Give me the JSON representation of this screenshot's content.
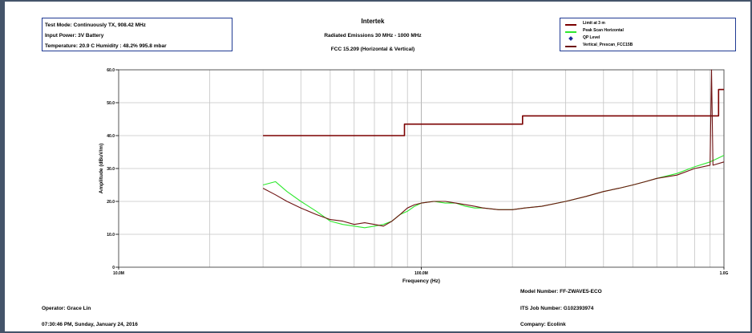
{
  "info": {
    "line1": "Test Mode: Continuously TX, 908.42 MHz",
    "line2": "Input Power: 3V Battery",
    "line3": "Temperature: 20.9 C Humidity : 48.2% 995.8 mbar"
  },
  "header": {
    "company": "Intertek",
    "subtitle": "Radiated Emissions 30 MHz - 1000 MHz",
    "standard": "FCC 15.209 (Horizontal & Vertical)"
  },
  "legend": [
    {
      "label": "Limit at 3 m",
      "color": "#7b0000",
      "kind": "line"
    },
    {
      "label": "Peak Scan Horizontal",
      "color": "#2ee82e",
      "kind": "line"
    },
    {
      "label": "QP Level",
      "color": "#1a2a9a",
      "kind": "dot"
    },
    {
      "label": "Vertical_Prescan_FCC15B",
      "color": "#6e1212",
      "kind": "line"
    }
  ],
  "footer": {
    "model": "Model Number: FF-ZWAVE5-ECO",
    "job": "ITS Job Number: G102393974",
    "company": "Company: Ecolink",
    "operator": "Operator: Grace Lin",
    "timestamp": "07:30:46 PM, Sunday, January 24, 2016"
  },
  "chart_data": {
    "type": "line",
    "xlabel": "Frequency (Hz)",
    "ylabel": "Amplitude (dBuV/m)",
    "xscale": "log",
    "xlim": [
      10000000,
      1000000000
    ],
    "ylim": [
      0,
      60
    ],
    "grid": true,
    "x_tick_labels": [
      {
        "value": 10000000,
        "label": "10.0M"
      },
      {
        "value": 100000000,
        "label": "100.0M"
      },
      {
        "value": 1000000000,
        "label": "1.0G"
      }
    ],
    "y_tick_labels": [
      {
        "value": 0,
        "label": "0"
      },
      {
        "value": 10,
        "label": "10.0"
      },
      {
        "value": 20,
        "label": "20.0"
      },
      {
        "value": 30,
        "label": "30.0"
      },
      {
        "value": 40,
        "label": "40.0"
      },
      {
        "value": 50,
        "label": "50.0"
      },
      {
        "value": 60,
        "label": "60.0"
      }
    ],
    "series": [
      {
        "name": "Limit at 3 m",
        "color": "#7b0000",
        "x": [
          30000000,
          88000000,
          88000000,
          216000000,
          216000000,
          960000000,
          960000000,
          1000000000
        ],
        "y": [
          40,
          40,
          43.5,
          43.5,
          46,
          46,
          54,
          54
        ]
      },
      {
        "name": "Peak Scan Horizontal",
        "color": "#2ee82e",
        "x": [
          30000000,
          33000000,
          36000000,
          40000000,
          45000000,
          50000000,
          55000000,
          60000000,
          65000000,
          70000000,
          75000000,
          80000000,
          85000000,
          90000000,
          95000000,
          100000000,
          110000000,
          120000000,
          130000000,
          140000000,
          150000000,
          160000000,
          180000000,
          200000000,
          220000000,
          250000000,
          300000000,
          350000000,
          400000000,
          450000000,
          500000000,
          550000000,
          600000000,
          700000000,
          800000000,
          900000000,
          1000000000
        ],
        "y": [
          25,
          26,
          23,
          20,
          17,
          14,
          13,
          12.5,
          12,
          12.5,
          13,
          14,
          16,
          17,
          18.5,
          19.5,
          20,
          19.5,
          19.5,
          18.5,
          18,
          18,
          17.5,
          17.5,
          18,
          18.5,
          20,
          21.5,
          23,
          24,
          25,
          26,
          27,
          28.5,
          30.5,
          32,
          34
        ]
      },
      {
        "name": "Vertical_Prescan_FCC15B",
        "color": "#6e1212",
        "x": [
          30000000,
          33000000,
          36000000,
          40000000,
          45000000,
          50000000,
          55000000,
          60000000,
          65000000,
          70000000,
          75000000,
          80000000,
          85000000,
          90000000,
          95000000,
          100000000,
          110000000,
          120000000,
          130000000,
          140000000,
          150000000,
          160000000,
          180000000,
          200000000,
          220000000,
          250000000,
          300000000,
          350000000,
          400000000,
          450000000,
          500000000,
          550000000,
          600000000,
          700000000,
          800000000,
          900000000,
          910000000,
          920000000,
          1000000000
        ],
        "y": [
          24,
          22,
          20,
          18,
          16,
          14.5,
          14,
          13,
          13.5,
          13,
          12.5,
          14,
          16,
          18,
          19,
          19.5,
          20,
          20,
          19.5,
          19,
          18.5,
          18,
          17.5,
          17.5,
          18,
          18.5,
          20,
          21.5,
          23,
          24,
          25,
          26,
          27,
          28,
          30,
          31,
          61,
          31,
          32
        ]
      }
    ]
  }
}
